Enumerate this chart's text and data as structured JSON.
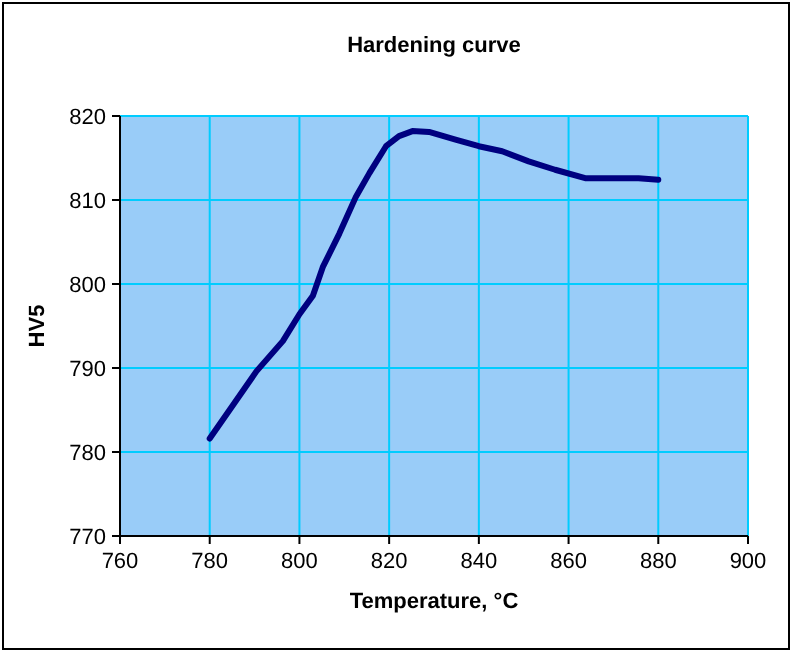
{
  "chart_data": {
    "type": "line",
    "title": "Hardening curve",
    "xlabel": "Temperature, °C",
    "ylabel": "HV5",
    "x": [
      780,
      785.2,
      790.4,
      796.3,
      800,
      803,
      805.2,
      808.9,
      812.6,
      815.6,
      819.3,
      822.2,
      825.2,
      828.9,
      834.8,
      840,
      845.2,
      851.1,
      857,
      863.7,
      870.4,
      875.6,
      880
    ],
    "series": [
      {
        "color": "#000080",
        "values": [
          781.6,
          785.6,
          789.6,
          793.2,
          796.4,
          798.6,
          802,
          806,
          810.4,
          813.2,
          816.4,
          817.6,
          818.2,
          818.1,
          817.2,
          816.4,
          815.8,
          814.6,
          813.6,
          812.6,
          812.6,
          812.6,
          812.4
        ]
      }
    ],
    "xlim": [
      760,
      900
    ],
    "xticks": [
      760,
      780,
      800,
      820,
      840,
      860,
      880,
      900
    ],
    "ylim": [
      770,
      820
    ],
    "yticks": [
      770,
      780,
      790,
      800,
      810,
      820
    ],
    "grid": true,
    "marker": "none",
    "line_style": "solid"
  }
}
